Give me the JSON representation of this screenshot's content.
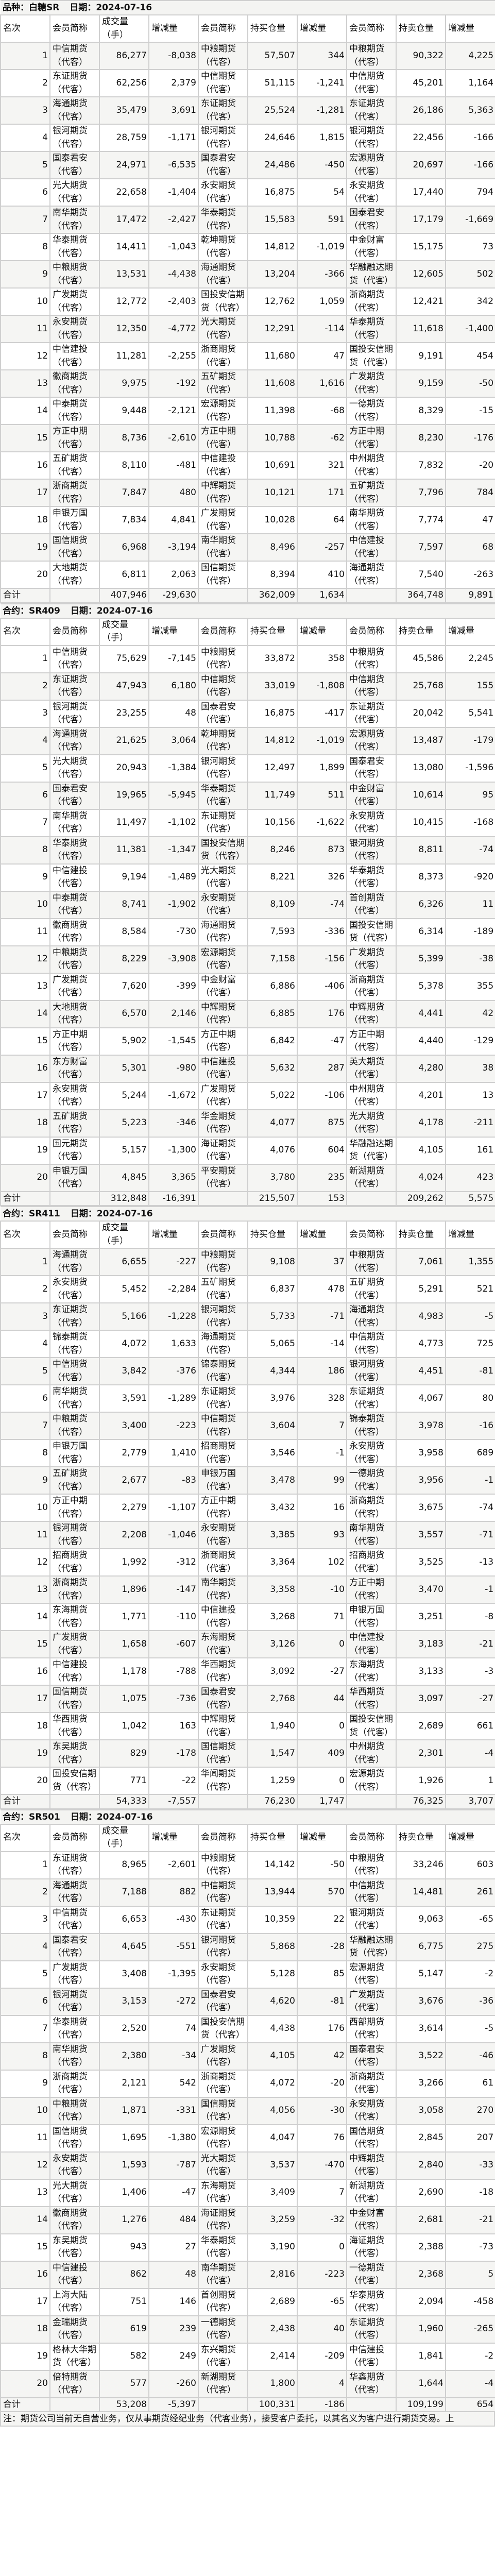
{
  "columns": [
    "名次",
    "会员简称",
    "成交量（手）",
    "增减量",
    "会员简称",
    "持买仓量",
    "增减量",
    "会员简称",
    "持卖仓量",
    "增减量"
  ],
  "total_label": "合计",
  "sections": [
    {
      "title": "品种：白糖SR",
      "date": "日期：2024-07-16",
      "rows": [
        [
          "1",
          "中信期货（代客）",
          "86,277",
          "-8,038",
          "中粮期货（代客）",
          "57,507",
          "344",
          "中粮期货（代客）",
          "90,322",
          "4,225"
        ],
        [
          "2",
          "东证期货（代客）",
          "62,256",
          "2,379",
          "中信期货（代客）",
          "51,115",
          "-1,241",
          "中信期货（代客）",
          "45,201",
          "1,164"
        ],
        [
          "3",
          "海通期货（代客）",
          "35,479",
          "3,691",
          "东证期货（代客）",
          "25,524",
          "-1,281",
          "东证期货（代客）",
          "26,186",
          "5,363"
        ],
        [
          "4",
          "银河期货（代客）",
          "28,759",
          "-1,171",
          "银河期货（代客）",
          "24,646",
          "1,815",
          "银河期货（代客）",
          "22,456",
          "-166"
        ],
        [
          "5",
          "国泰君安（代客）",
          "24,971",
          "-6,535",
          "国泰君安（代客）",
          "24,486",
          "-450",
          "宏源期货（代客）",
          "20,697",
          "-166"
        ],
        [
          "6",
          "光大期货（代客）",
          "22,658",
          "-1,404",
          "永安期货（代客）",
          "16,875",
          "54",
          "永安期货（代客）",
          "17,440",
          "794"
        ],
        [
          "7",
          "南华期货（代客）",
          "17,472",
          "-2,427",
          "华泰期货（代客）",
          "15,583",
          "591",
          "国泰君安（代客）",
          "17,179",
          "-1,669"
        ],
        [
          "8",
          "华泰期货（代客）",
          "14,411",
          "-1,043",
          "乾坤期货（代客）",
          "14,812",
          "-1,019",
          "中金财富（代客）",
          "15,175",
          "73"
        ],
        [
          "9",
          "中粮期货（代客）",
          "13,531",
          "-4,438",
          "海通期货（代客）",
          "13,204",
          "-366",
          "华融融达期货（代客）",
          "12,605",
          "502"
        ],
        [
          "10",
          "广发期货（代客）",
          "12,772",
          "-2,403",
          "国投安信期货（代客）",
          "12,762",
          "1,059",
          "浙商期货（代客）",
          "12,421",
          "342"
        ],
        [
          "11",
          "永安期货（代客）",
          "12,350",
          "-4,772",
          "光大期货（代客）",
          "12,291",
          "-114",
          "华泰期货（代客）",
          "11,618",
          "-1,400"
        ],
        [
          "12",
          "中信建投（代客）",
          "11,281",
          "-2,255",
          "浙商期货（代客）",
          "11,680",
          "47",
          "国投安信期货（代客）",
          "9,191",
          "454"
        ],
        [
          "13",
          "徽商期货（代客）",
          "9,975",
          "-192",
          "五矿期货（代客）",
          "11,608",
          "1,616",
          "广发期货（代客）",
          "9,159",
          "-50"
        ],
        [
          "14",
          "中泰期货（代客）",
          "9,448",
          "-2,121",
          "宏源期货（代客）",
          "11,398",
          "-68",
          "一德期货（代客）",
          "8,329",
          "-15"
        ],
        [
          "15",
          "方正中期（代客）",
          "8,736",
          "-2,610",
          "方正中期（代客）",
          "10,788",
          "-62",
          "方正中期（代客）",
          "8,230",
          "-176"
        ],
        [
          "16",
          "五矿期货（代客）",
          "8,110",
          "-481",
          "中信建投（代客）",
          "10,691",
          "321",
          "中州期货（代客）",
          "7,832",
          "-20"
        ],
        [
          "17",
          "浙商期货（代客）",
          "7,847",
          "480",
          "中辉期货（代客）",
          "10,121",
          "171",
          "五矿期货（代客）",
          "7,796",
          "784"
        ],
        [
          "18",
          "申银万国（代客）",
          "7,834",
          "4,841",
          "广发期货（代客）",
          "10,028",
          "64",
          "南华期货（代客）",
          "7,774",
          "47"
        ],
        [
          "19",
          "国信期货（代客）",
          "6,968",
          "-3,194",
          "南华期货（代客）",
          "8,496",
          "-257",
          "中信建投（代客）",
          "7,597",
          "68"
        ],
        [
          "20",
          "大地期货（代客）",
          "6,811",
          "2,063",
          "国信期货（代客）",
          "8,394",
          "410",
          "海通期货（代客）",
          "7,540",
          "-263"
        ]
      ],
      "total": [
        "407,946",
        "-29,630",
        "362,009",
        "1,634",
        "364,748",
        "9,891"
      ]
    },
    {
      "title": "合约：SR409",
      "date": "日期：2024-07-16",
      "rows": [
        [
          "1",
          "中信期货（代客）",
          "75,629",
          "-7,145",
          "中粮期货（代客）",
          "33,872",
          "358",
          "中粮期货（代客）",
          "45,586",
          "2,245"
        ],
        [
          "2",
          "东证期货（代客）",
          "47,943",
          "6,180",
          "中信期货（代客）",
          "33,019",
          "-1,808",
          "中信期货（代客）",
          "25,768",
          "155"
        ],
        [
          "3",
          "银河期货（代客）",
          "23,255",
          "48",
          "国泰君安（代客）",
          "16,875",
          "-417",
          "东证期货（代客）",
          "20,042",
          "5,541"
        ],
        [
          "4",
          "海通期货（代客）",
          "21,625",
          "3,064",
          "乾坤期货（代客）",
          "14,812",
          "-1,019",
          "宏源期货（代客）",
          "13,487",
          "-179"
        ],
        [
          "5",
          "光大期货（代客）",
          "20,943",
          "-1,384",
          "银河期货（代客）",
          "12,497",
          "1,899",
          "国泰君安（代客）",
          "13,080",
          "-1,596"
        ],
        [
          "6",
          "国泰君安（代客）",
          "19,965",
          "-5,945",
          "华泰期货（代客）",
          "11,749",
          "511",
          "中金财富（代客）",
          "10,614",
          "95"
        ],
        [
          "7",
          "南华期货（代客）",
          "11,497",
          "-1,102",
          "东证期货（代客）",
          "10,156",
          "-1,622",
          "永安期货（代客）",
          "10,415",
          "-168"
        ],
        [
          "8",
          "华泰期货（代客）",
          "11,381",
          "-1,347",
          "国投安信期货（代客）",
          "8,246",
          "873",
          "银河期货（代客）",
          "8,811",
          "-74"
        ],
        [
          "9",
          "中信建投（代客）",
          "9,194",
          "-1,489",
          "光大期货（代客）",
          "8,221",
          "326",
          "华泰期货（代客）",
          "8,373",
          "-920"
        ],
        [
          "10",
          "中泰期货（代客）",
          "8,741",
          "-1,902",
          "永安期货（代客）",
          "8,109",
          "-74",
          "首创期货（代客）",
          "6,326",
          "11"
        ],
        [
          "11",
          "徽商期货（代客）",
          "8,584",
          "-730",
          "海通期货（代客）",
          "7,593",
          "-336",
          "国投安信期货（代客）",
          "6,314",
          "-189"
        ],
        [
          "12",
          "中粮期货（代客）",
          "8,229",
          "-3,908",
          "宏源期货（代客）",
          "7,158",
          "-156",
          "广发期货（代客）",
          "5,399",
          "-38"
        ],
        [
          "13",
          "广发期货（代客）",
          "7,620",
          "-399",
          "中金财富（代客）",
          "6,886",
          "-406",
          "浙商期货（代客）",
          "5,378",
          "355"
        ],
        [
          "14",
          "大地期货（代客）",
          "6,570",
          "2,146",
          "中辉期货（代客）",
          "6,885",
          "176",
          "中辉期货（代客）",
          "4,441",
          "42"
        ],
        [
          "15",
          "方正中期（代客）",
          "5,902",
          "-1,545",
          "方正中期（代客）",
          "6,842",
          "-47",
          "方正中期（代客）",
          "4,440",
          "-129"
        ],
        [
          "16",
          "东方财富（代客）",
          "5,301",
          "-980",
          "中信建投（代客）",
          "5,632",
          "287",
          "英大期货（代客）",
          "4,280",
          "38"
        ],
        [
          "17",
          "永安期货（代客）",
          "5,244",
          "-1,672",
          "广发期货（代客）",
          "5,022",
          "-106",
          "中州期货（代客）",
          "4,201",
          "13"
        ],
        [
          "18",
          "五矿期货（代客）",
          "5,223",
          "-346",
          "华金期货（代客）",
          "4,077",
          "875",
          "光大期货（代客）",
          "4,178",
          "-211"
        ],
        [
          "19",
          "国元期货（代客）",
          "5,157",
          "-1,300",
          "海证期货（代客）",
          "4,076",
          "604",
          "华融融达期货（代客）",
          "4,105",
          "161"
        ],
        [
          "20",
          "申银万国（代客）",
          "4,845",
          "3,365",
          "平安期货（代客）",
          "3,780",
          "235",
          "新湖期货（代客）",
          "4,024",
          "423"
        ]
      ],
      "total": [
        "312,848",
        "-16,391",
        "215,507",
        "153",
        "209,262",
        "5,575"
      ]
    },
    {
      "title": "合约：SR411",
      "date": "日期：2024-07-16",
      "rows": [
        [
          "1",
          "海通期货（代客）",
          "6,655",
          "-227",
          "中粮期货（代客）",
          "9,108",
          "37",
          "中粮期货（代客）",
          "7,061",
          "1,355"
        ],
        [
          "2",
          "永安期货（代客）",
          "5,452",
          "-2,284",
          "五矿期货（代客）",
          "6,837",
          "478",
          "五矿期货（代客）",
          "5,291",
          "521"
        ],
        [
          "3",
          "东证期货（代客）",
          "5,166",
          "-1,228",
          "银河期货（代客）",
          "5,733",
          "-71",
          "海通期货（代客）",
          "4,983",
          "-5"
        ],
        [
          "4",
          "锦泰期货（代客）",
          "4,072",
          "1,633",
          "海通期货（代客）",
          "5,065",
          "-14",
          "中信期货（代客）",
          "4,773",
          "725"
        ],
        [
          "5",
          "中信期货（代客）",
          "3,842",
          "-376",
          "锦泰期货（代客）",
          "4,344",
          "186",
          "银河期货（代客）",
          "4,451",
          "-81"
        ],
        [
          "6",
          "南华期货（代客）",
          "3,591",
          "-1,289",
          "东证期货（代客）",
          "3,976",
          "328",
          "东证期货（代客）",
          "4,067",
          "80"
        ],
        [
          "7",
          "中粮期货（代客）",
          "3,400",
          "-223",
          "中信期货（代客）",
          "3,604",
          "7",
          "锦泰期货（代客）",
          "3,978",
          "-16"
        ],
        [
          "8",
          "申银万国（代客）",
          "2,779",
          "1,410",
          "招商期货（代客）",
          "3,546",
          "-1",
          "永安期货（代客）",
          "3,958",
          "689"
        ],
        [
          "9",
          "五矿期货（代客）",
          "2,677",
          "-83",
          "申银万国（代客）",
          "3,478",
          "99",
          "一德期货（代客）",
          "3,956",
          "-1"
        ],
        [
          "10",
          "方正中期（代客）",
          "2,279",
          "-1,107",
          "方正中期（代客）",
          "3,432",
          "16",
          "浙商期货（代客）",
          "3,675",
          "-74"
        ],
        [
          "11",
          "银河期货（代客）",
          "2,208",
          "-1,046",
          "永安期货（代客）",
          "3,385",
          "93",
          "南华期货（代客）",
          "3,557",
          "-71"
        ],
        [
          "12",
          "招商期货（代客）",
          "1,992",
          "-312",
          "浙商期货（代客）",
          "3,364",
          "102",
          "招商期货（代客）",
          "3,525",
          "-13"
        ],
        [
          "13",
          "浙商期货（代客）",
          "1,896",
          "-147",
          "南华期货（代客）",
          "3,358",
          "-10",
          "方正中期（代客）",
          "3,470",
          "-1"
        ],
        [
          "14",
          "东海期货（代客）",
          "1,771",
          "-110",
          "中信建投（代客）",
          "3,268",
          "71",
          "申银万国（代客）",
          "3,251",
          "-8"
        ],
        [
          "15",
          "广发期货（代客）",
          "1,658",
          "-607",
          "东海期货（代客）",
          "3,126",
          "0",
          "中信建投（代客）",
          "3,183",
          "-21"
        ],
        [
          "16",
          "中信建投（代客）",
          "1,178",
          "-788",
          "华西期货（代客）",
          "3,092",
          "-27",
          "东海期货（代客）",
          "3,133",
          "-3"
        ],
        [
          "17",
          "国信期货（代客）",
          "1,075",
          "-736",
          "国泰君安（代客）",
          "2,768",
          "44",
          "华西期货（代客）",
          "3,097",
          "-27"
        ],
        [
          "18",
          "华西期货（代客）",
          "1,042",
          "163",
          "中辉期货（代客）",
          "1,940",
          "0",
          "国投安信期货（代客）",
          "2,689",
          "661"
        ],
        [
          "19",
          "东吴期货（代客）",
          "829",
          "-178",
          "国信期货（代客）",
          "1,547",
          "409",
          "中州期货（代客）",
          "2,301",
          "-4"
        ],
        [
          "20",
          "国投安信期货（代客）",
          "771",
          "-22",
          "华闻期货（代客）",
          "1,259",
          "0",
          "宏源期货（代客）",
          "1,926",
          "1"
        ]
      ],
      "total": [
        "54,333",
        "-7,557",
        "76,230",
        "1,747",
        "76,325",
        "3,707"
      ]
    },
    {
      "title": "合约：SR501",
      "date": "日期：2024-07-16",
      "rows": [
        [
          "1",
          "东证期货（代客）",
          "8,965",
          "-2,601",
          "中粮期货（代客）",
          "14,142",
          "-50",
          "中粮期货（代客）",
          "33,246",
          "603"
        ],
        [
          "2",
          "海通期货（代客）",
          "7,188",
          "882",
          "中信期货（代客）",
          "13,944",
          "570",
          "中信期货（代客）",
          "14,481",
          "261"
        ],
        [
          "3",
          "中信期货（代客）",
          "6,653",
          "-430",
          "东证期货（代客）",
          "10,359",
          "22",
          "银河期货（代客）",
          "9,063",
          "-65"
        ],
        [
          "4",
          "国泰君安（代客）",
          "4,645",
          "-551",
          "银河期货（代客）",
          "5,868",
          "-28",
          "华融融达期货（代客）",
          "6,775",
          "275"
        ],
        [
          "5",
          "广发期货（代客）",
          "3,408",
          "-1,395",
          "永安期货（代客）",
          "5,128",
          "85",
          "宏源期货（代客）",
          "5,147",
          "-2"
        ],
        [
          "6",
          "银河期货（代客）",
          "3,153",
          "-272",
          "国泰君安（代客）",
          "4,620",
          "-81",
          "广发期货（代客）",
          "3,676",
          "-36"
        ],
        [
          "7",
          "华泰期货（代客）",
          "2,520",
          "74",
          "国投安信期货（代客）",
          "4,438",
          "176",
          "西部期货（代客）",
          "3,614",
          "-5"
        ],
        [
          "8",
          "南华期货（代客）",
          "2,380",
          "-34",
          "广发期货（代客）",
          "4,105",
          "42",
          "国泰君安（代客）",
          "3,522",
          "-46"
        ],
        [
          "9",
          "浙商期货（代客）",
          "2,121",
          "542",
          "浙商期货（代客）",
          "4,072",
          "-20",
          "浙商期货（代客）",
          "3,266",
          "61"
        ],
        [
          "10",
          "中粮期货（代客）",
          "1,871",
          "-331",
          "国信期货（代客）",
          "4,056",
          "-30",
          "永安期货（代客）",
          "3,058",
          "270"
        ],
        [
          "11",
          "国信期货（代客）",
          "1,695",
          "-1,380",
          "宏源期货（代客）",
          "4,047",
          "76",
          "国信期货（代客）",
          "2,845",
          "207"
        ],
        [
          "12",
          "永安期货（代客）",
          "1,593",
          "-787",
          "光大期货（代客）",
          "3,537",
          "-470",
          "中辉期货（代客）",
          "2,840",
          "-33"
        ],
        [
          "13",
          "光大期货（代客）",
          "1,406",
          "-47",
          "东海期货（代客）",
          "3,409",
          "7",
          "新湖期货（代客）",
          "2,690",
          "-18"
        ],
        [
          "14",
          "徽商期货（代客）",
          "1,276",
          "484",
          "海证期货（代客）",
          "3,259",
          "-32",
          "中金财富（代客）",
          "2,681",
          "-21"
        ],
        [
          "15",
          "东吴期货（代客）",
          "943",
          "27",
          "华泰期货（代客）",
          "3,190",
          "0",
          "海证期货（代客）",
          "2,388",
          "-73"
        ],
        [
          "16",
          "中信建投（代客）",
          "862",
          "48",
          "南华期货（代客）",
          "2,816",
          "-223",
          "一德期货（代客）",
          "2,368",
          "5"
        ],
        [
          "17",
          "上海大陆（代客）",
          "751",
          "146",
          "首创期货（代客）",
          "2,689",
          "-65",
          "华泰期货（代客）",
          "2,094",
          "-458"
        ],
        [
          "18",
          "金瑞期货（代客）",
          "619",
          "239",
          "一德期货（代客）",
          "2,438",
          "40",
          "东证期货（代客）",
          "1,960",
          "-265"
        ],
        [
          "19",
          "格林大华期货（代客）",
          "582",
          "249",
          "东兴期货（代客）",
          "2,414",
          "-209",
          "中信建投（代客）",
          "1,841",
          "-2"
        ],
        [
          "20",
          "倍特期货（代客）",
          "577",
          "-260",
          "新湖期货（代客）",
          "1,800",
          "4",
          "华鑫期货（代客）",
          "1,644",
          "-4"
        ]
      ],
      "total": [
        "53,208",
        "-5,397",
        "100,331",
        "-186",
        "109,199",
        "654"
      ]
    }
  ],
  "note": "注：期货公司当前无自营业务，仅从事期货经纪业务（代客业务），接受客户委托，以其名义为客户进行期货交易。上"
}
